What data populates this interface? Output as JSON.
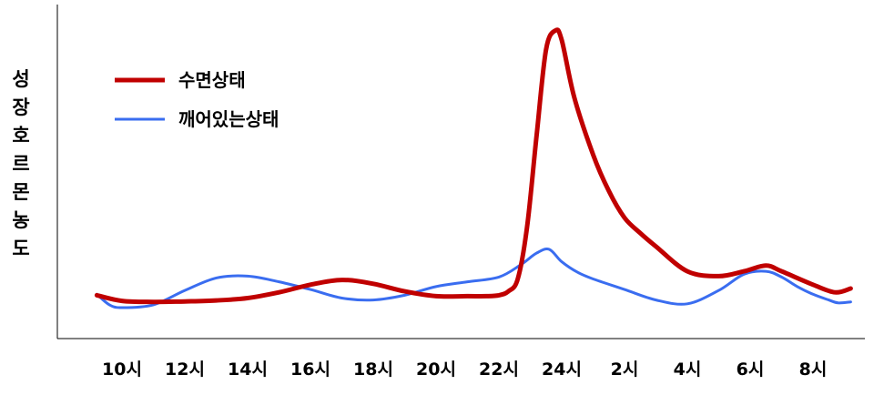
{
  "chart_data": {
    "type": "line",
    "ylabel": "성장호르몬농도",
    "xlabel": "",
    "categories": [
      "10시",
      "12시",
      "14시",
      "16시",
      "18시",
      "20시",
      "22시",
      "24시",
      "2시",
      "4시",
      "6시",
      "8시"
    ],
    "legend_position": "top-left",
    "grid": false,
    "series": [
      {
        "name": "수면상태",
        "color": "#c00000",
        "x": [
          9.2,
          10,
          11,
          12,
          13,
          14,
          15,
          16,
          17,
          18,
          19,
          20,
          21,
          21.6,
          22,
          22.3,
          22.6,
          22.9,
          23.2,
          23.5,
          23.8,
          24,
          24.4,
          25,
          25.5,
          26,
          26.5,
          27,
          28,
          29,
          29.8,
          30.5,
          31,
          32,
          32.7,
          33.2
        ],
        "values": [
          13,
          7,
          6,
          6.5,
          7.5,
          10,
          16,
          24,
          29,
          25,
          17,
          12,
          12,
          12,
          13,
          17,
          30,
          85,
          180,
          270,
          290,
          280,
          220,
          160,
          122,
          94,
          78,
          64,
          38,
          33,
          38,
          44,
          38,
          24,
          16,
          20
        ]
      },
      {
        "name": "깨어있는상태",
        "color": "#3a6df0",
        "x": [
          9.2,
          9.6,
          10,
          11,
          12,
          13,
          14,
          15,
          16,
          17,
          18,
          19,
          20,
          21,
          22,
          22.7,
          23.2,
          23.6,
          24,
          24.5,
          25,
          26,
          27,
          28,
          29,
          29.8,
          30.5,
          31,
          31.5,
          32,
          32.5,
          32.8,
          33.2
        ],
        "values": [
          14,
          3,
          0,
          3,
          18,
          31,
          33,
          27,
          19,
          10,
          8,
          13,
          22,
          27,
          32,
          45,
          57,
          61,
          48,
          37,
          30,
          19,
          8,
          4,
          18,
          35,
          38,
          32,
          22,
          14,
          8,
          5,
          6
        ]
      }
    ]
  }
}
